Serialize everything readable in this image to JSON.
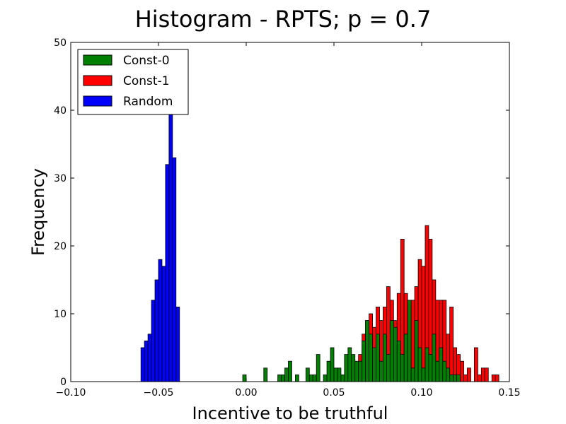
{
  "chart_data": {
    "type": "bar",
    "title": "Histogram - RPTS;  p = 0.7",
    "xlabel": "Incentive to be truthful",
    "ylabel": "Frequency",
    "xlim": [
      -0.1,
      0.15
    ],
    "ylim": [
      0,
      50
    ],
    "bin_width": 0.002,
    "xticks": [
      -0.1,
      -0.05,
      0.0,
      0.05,
      0.1,
      0.15
    ],
    "xtick_labels": [
      "−0.10",
      "−0.05",
      "0.00",
      "0.05",
      "0.10",
      "0.15"
    ],
    "yticks": [
      0,
      10,
      20,
      30,
      40,
      50
    ],
    "ytick_labels": [
      "0",
      "10",
      "20",
      "30",
      "40",
      "50"
    ],
    "grid": false,
    "legend_position": "top-left",
    "series": [
      {
        "name": "Random",
        "color": "#0000ff",
        "x": [
          -0.059,
          -0.057,
          -0.055,
          -0.053,
          -0.051,
          -0.049,
          -0.047,
          -0.045,
          -0.043,
          -0.041,
          -0.039
        ],
        "values": [
          5,
          6,
          7,
          12,
          15,
          18,
          17,
          32,
          40,
          33,
          11
        ]
      },
      {
        "name": "Const-1",
        "color": "#ff0000",
        "x": [
          0.065,
          0.067,
          0.069,
          0.071,
          0.073,
          0.075,
          0.077,
          0.079,
          0.081,
          0.083,
          0.085,
          0.087,
          0.089,
          0.091,
          0.093,
          0.095,
          0.097,
          0.099,
          0.101,
          0.103,
          0.105,
          0.107,
          0.109,
          0.111,
          0.113,
          0.115,
          0.117,
          0.119,
          0.121,
          0.123,
          0.125,
          0.127,
          0.129,
          0.131,
          0.133,
          0.135,
          0.137,
          0.139,
          0.141,
          0.143
        ],
        "values": [
          4,
          7,
          9,
          10,
          8,
          11,
          9,
          11,
          14,
          12,
          9,
          13,
          21,
          13,
          6,
          12,
          14,
          18,
          17,
          23,
          21,
          15,
          12,
          12,
          12,
          7,
          11,
          5,
          4,
          3,
          1,
          2,
          0,
          5,
          1,
          2,
          2,
          0,
          1,
          1
        ]
      },
      {
        "name": "Const-0",
        "color": "#008000",
        "x": [
          -0.001,
          0.011,
          0.019,
          0.021,
          0.023,
          0.025,
          0.029,
          0.035,
          0.037,
          0.039,
          0.041,
          0.045,
          0.047,
          0.049,
          0.051,
          0.053,
          0.055,
          0.057,
          0.059,
          0.061,
          0.063,
          0.065,
          0.067,
          0.069,
          0.071,
          0.073,
          0.075,
          0.077,
          0.079,
          0.081,
          0.083,
          0.085,
          0.087,
          0.089,
          0.091,
          0.093,
          0.095,
          0.097,
          0.099,
          0.101,
          0.103,
          0.105,
          0.107,
          0.109,
          0.111,
          0.113,
          0.115,
          0.117,
          0.119,
          0.121
        ],
        "values": [
          1,
          2,
          1,
          1,
          2,
          3,
          1,
          2,
          1,
          1,
          4,
          1,
          3,
          5,
          2,
          2,
          1,
          4,
          5,
          4,
          3,
          3,
          6,
          9,
          7,
          5,
          7,
          3,
          7,
          4,
          9,
          8,
          6,
          4,
          7,
          12,
          2,
          9,
          5,
          2,
          5,
          4,
          7,
          3,
          5,
          3,
          2,
          1,
          1,
          1
        ]
      }
    ],
    "legend_order": [
      "Const-0",
      "Const-1",
      "Random"
    ]
  }
}
